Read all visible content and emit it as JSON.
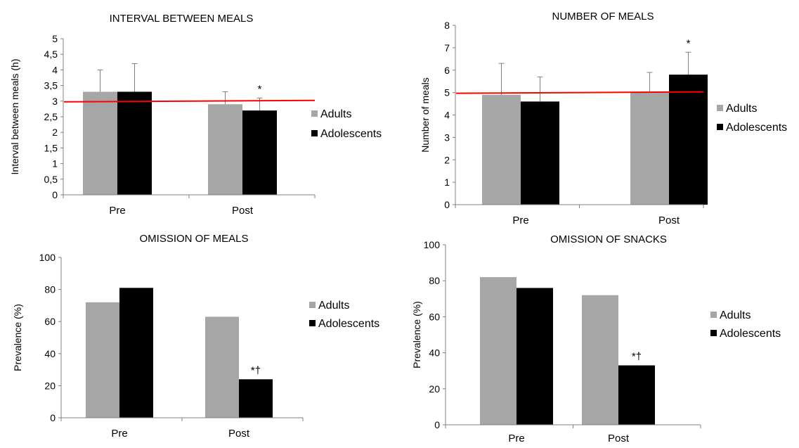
{
  "colors": {
    "adults": "#a6a6a6",
    "adolescents": "#000000",
    "reference_line": "#ff0000",
    "axis": "#808080"
  },
  "chart_data": [
    {
      "id": "interval",
      "type": "bar",
      "title": "INTERVAL BETWEEN MEALS",
      "xlabel": "",
      "ylabel": "Interval between meals (h)",
      "categories": [
        "Pre",
        "Post"
      ],
      "ylim": [
        0,
        5
      ],
      "yticks": [
        0,
        0.5,
        1,
        1.5,
        2,
        2.5,
        3,
        3.5,
        4,
        4.5,
        5
      ],
      "ytick_labels": [
        "0",
        "0,5",
        "1",
        "1,5",
        "2",
        "2,5",
        "3",
        "3,5",
        "4",
        "4,5",
        "5"
      ],
      "series": [
        {
          "name": "Adults",
          "values": [
            3.3,
            2.9
          ],
          "error": [
            0.7,
            0.4
          ]
        },
        {
          "name": "Adolescents",
          "values": [
            3.3,
            2.7
          ],
          "error": [
            0.9,
            0.4
          ]
        }
      ],
      "reference_line": 3.0,
      "annotations": [
        {
          "category": 1,
          "series": 1,
          "text": "*"
        }
      ],
      "legend": "right",
      "grid": false
    },
    {
      "id": "number",
      "type": "bar",
      "title": "NUMBER OF MEALS",
      "xlabel": "",
      "ylabel": "Number of meals",
      "categories": [
        "Pre",
        "Post"
      ],
      "ylim": [
        0,
        8
      ],
      "yticks": [
        0,
        1,
        2,
        3,
        4,
        5,
        6,
        7,
        8
      ],
      "ytick_labels": [
        "0",
        "1",
        "2",
        "3",
        "4",
        "5",
        "6",
        "7",
        "8"
      ],
      "series": [
        {
          "name": "Adults",
          "values": [
            4.9,
            5.0
          ],
          "error": [
            1.4,
            0.9
          ]
        },
        {
          "name": "Adolescents",
          "values": [
            4.6,
            5.8
          ],
          "error": [
            1.1,
            1.0
          ]
        }
      ],
      "reference_line": 5.0,
      "annotations": [
        {
          "category": 1,
          "series": 1,
          "text": "*"
        }
      ],
      "legend": "right",
      "grid": false
    },
    {
      "id": "omission-meals",
      "type": "bar",
      "title": "OMISSION OF MEALS",
      "xlabel": "",
      "ylabel": "Prevalence (%)",
      "categories": [
        "Pre",
        "Post"
      ],
      "ylim": [
        0,
        100
      ],
      "yticks": [
        0,
        20,
        40,
        60,
        80,
        100
      ],
      "ytick_labels": [
        "0",
        "20",
        "40",
        "60",
        "80",
        "100"
      ],
      "series": [
        {
          "name": "Adults",
          "values": [
            72,
            63
          ]
        },
        {
          "name": "Adolescents",
          "values": [
            81,
            24
          ]
        }
      ],
      "annotations": [
        {
          "category": 1,
          "series": 1,
          "text": "*†"
        }
      ],
      "legend": "right",
      "grid": false
    },
    {
      "id": "omission-snacks",
      "type": "bar",
      "title": "OMISSION OF SNACKS",
      "xlabel": "",
      "ylabel": "Prevalence (%)",
      "categories": [
        "Pre",
        "Post"
      ],
      "ylim": [
        0,
        100
      ],
      "yticks": [
        0,
        20,
        40,
        60,
        80,
        100
      ],
      "ytick_labels": [
        "0",
        "20",
        "40",
        "60",
        "80",
        "100"
      ],
      "series": [
        {
          "name": "Adults",
          "values": [
            82,
            72
          ]
        },
        {
          "name": "Adolescents",
          "values": [
            76,
            33
          ]
        }
      ],
      "annotations": [
        {
          "category": 1,
          "series": 1,
          "text": "*†"
        }
      ],
      "legend": "right",
      "grid": false
    }
  ]
}
